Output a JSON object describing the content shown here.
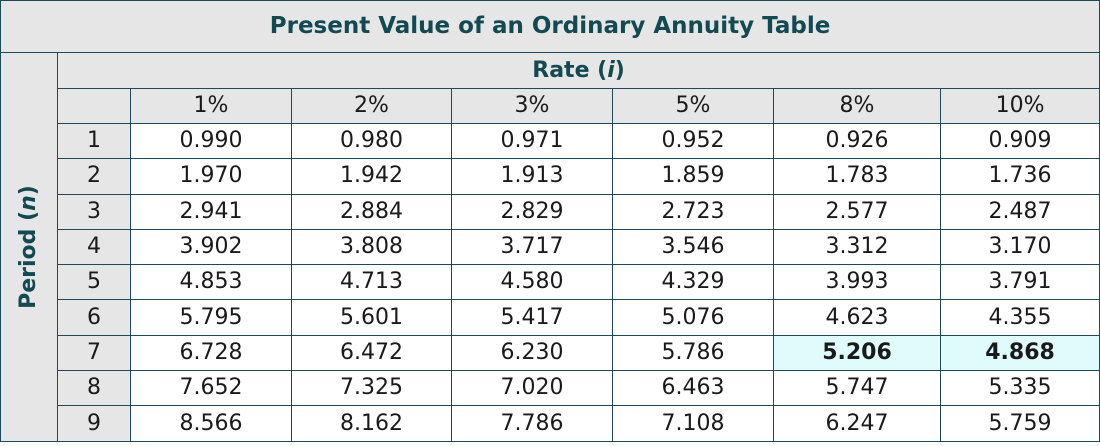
{
  "table": {
    "title": "Present Value of an Ordinary Annuity Table",
    "rate_label": "Rate (",
    "rate_var": "i",
    "rate_close": ")",
    "period_label": "Period (",
    "period_var": "n",
    "period_close": ")",
    "rates": [
      "1%",
      "2%",
      "3%",
      "5%",
      "8%",
      "10%"
    ],
    "rows": [
      {
        "n": "1",
        "values": [
          "0.990",
          "0.980",
          "0.971",
          "0.952",
          "0.926",
          "0.909"
        ]
      },
      {
        "n": "2",
        "values": [
          "1.970",
          "1.942",
          "1.913",
          "1.859",
          "1.783",
          "1.736"
        ]
      },
      {
        "n": "3",
        "values": [
          "2.941",
          "2.884",
          "2.829",
          "2.723",
          "2.577",
          "2.487"
        ]
      },
      {
        "n": "4",
        "values": [
          "3.902",
          "3.808",
          "3.717",
          "3.546",
          "3.312",
          "3.170"
        ]
      },
      {
        "n": "5",
        "values": [
          "4.853",
          "4.713",
          "4.580",
          "4.329",
          "3.993",
          "3.791"
        ]
      },
      {
        "n": "6",
        "values": [
          "5.795",
          "5.601",
          "5.417",
          "5.076",
          "4.623",
          "4.355"
        ]
      },
      {
        "n": "7",
        "values": [
          "6.728",
          "6.472",
          "6.230",
          "5.786",
          "5.206",
          "4.868"
        ]
      },
      {
        "n": "8",
        "values": [
          "7.652",
          "7.325",
          "7.020",
          "6.463",
          "5.747",
          "5.335"
        ]
      },
      {
        "n": "9",
        "values": [
          "8.566",
          "8.162",
          "7.786",
          "7.108",
          "6.247",
          "5.759"
        ]
      }
    ],
    "highlighted_cells": [
      {
        "row": 6,
        "col": 4
      },
      {
        "row": 6,
        "col": 5
      }
    ]
  },
  "colors": {
    "header_bg": "#e6e6e6",
    "title_text": "#124a52",
    "border": "#1e4a58",
    "highlight_bg": "#e0fbfb"
  }
}
